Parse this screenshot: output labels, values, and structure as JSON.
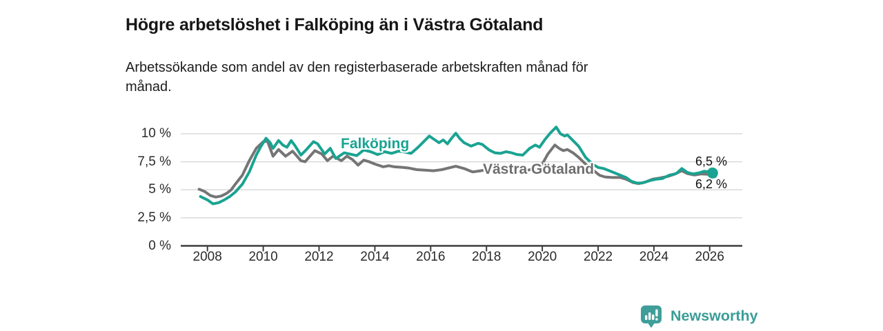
{
  "chart_data": {
    "type": "line",
    "title": "Högre arbetslöshet i Falköping än i Västra Götaland",
    "subtitle": "Arbetssökande som andel av den registerbaserade arbetskraften månad för månad.",
    "x_axis": {
      "range": [
        2007,
        2027.2
      ],
      "ticks": [
        {
          "value": 2008,
          "label": "2008"
        },
        {
          "value": 2010,
          "label": "2010"
        },
        {
          "value": 2012,
          "label": "2012"
        },
        {
          "value": 2014,
          "label": "2014"
        },
        {
          "value": 2016,
          "label": "2016"
        },
        {
          "value": 2018,
          "label": "2018"
        },
        {
          "value": 2020,
          "label": "2020"
        },
        {
          "value": 2022,
          "label": "2022"
        },
        {
          "value": 2024,
          "label": "2024"
        },
        {
          "value": 2026,
          "label": "2026"
        }
      ]
    },
    "y_axis": {
      "unit": "%",
      "range": [
        0,
        10.8
      ],
      "grid": true,
      "ticks": [
        {
          "value": 0,
          "label": "0 %"
        },
        {
          "value": 2.5,
          "label": "2,5 %"
        },
        {
          "value": 5,
          "label": "5 %"
        },
        {
          "value": 7.5,
          "label": "7,5 %"
        },
        {
          "value": 10,
          "label": "10 %"
        }
      ]
    },
    "style": {
      "grid_color": "#d9d9d9",
      "axis_color": "#3c3c3c",
      "line_width": 4
    },
    "legend_position": "inline-labels",
    "series": [
      {
        "name": "Västra Götaland",
        "label": "Västra Götaland",
        "color": "#757575",
        "end_label": "6,2 %",
        "end_value": 6.2,
        "end_marker": false,
        "points": [
          [
            2007.7,
            5.05
          ],
          [
            2007.9,
            4.85
          ],
          [
            2008.1,
            4.5
          ],
          [
            2008.3,
            4.35
          ],
          [
            2008.5,
            4.45
          ],
          [
            2008.7,
            4.7
          ],
          [
            2008.85,
            5.0
          ],
          [
            2009.0,
            5.5
          ],
          [
            2009.25,
            6.3
          ],
          [
            2009.5,
            7.6
          ],
          [
            2009.75,
            8.7
          ],
          [
            2010.0,
            9.3
          ],
          [
            2010.15,
            9.35
          ],
          [
            2010.35,
            8.0
          ],
          [
            2010.55,
            8.6
          ],
          [
            2010.8,
            8.0
          ],
          [
            2011.05,
            8.45
          ],
          [
            2011.35,
            7.6
          ],
          [
            2011.5,
            7.5
          ],
          [
            2011.85,
            8.5
          ],
          [
            2012.1,
            8.2
          ],
          [
            2012.3,
            7.6
          ],
          [
            2012.5,
            8.0
          ],
          [
            2012.8,
            7.6
          ],
          [
            2013.0,
            8.0
          ],
          [
            2013.2,
            7.7
          ],
          [
            2013.4,
            7.2
          ],
          [
            2013.6,
            7.65
          ],
          [
            2013.8,
            7.5
          ],
          [
            2014.0,
            7.3
          ],
          [
            2014.3,
            7.05
          ],
          [
            2014.5,
            7.15
          ],
          [
            2014.7,
            7.05
          ],
          [
            2015.0,
            7.0
          ],
          [
            2015.2,
            6.95
          ],
          [
            2015.5,
            6.8
          ],
          [
            2015.8,
            6.75
          ],
          [
            2016.1,
            6.7
          ],
          [
            2016.4,
            6.8
          ],
          [
            2016.9,
            7.1
          ],
          [
            2017.2,
            6.9
          ],
          [
            2017.5,
            6.6
          ],
          [
            2017.8,
            6.7
          ],
          [
            2018.1,
            6.85
          ],
          [
            2018.3,
            6.7
          ],
          [
            2018.6,
            6.6
          ],
          [
            2018.9,
            6.65
          ],
          [
            2019.2,
            6.6
          ],
          [
            2019.5,
            6.75
          ],
          [
            2019.8,
            7.0
          ],
          [
            2020.0,
            7.3
          ],
          [
            2020.2,
            8.2
          ],
          [
            2020.45,
            9.0
          ],
          [
            2020.6,
            8.7
          ],
          [
            2020.75,
            8.5
          ],
          [
            2020.9,
            8.6
          ],
          [
            2021.1,
            8.3
          ],
          [
            2021.3,
            7.9
          ],
          [
            2021.55,
            7.3
          ],
          [
            2021.8,
            6.8
          ],
          [
            2022.05,
            6.3
          ],
          [
            2022.25,
            6.15
          ],
          [
            2022.5,
            6.1
          ],
          [
            2022.8,
            6.1
          ],
          [
            2023.0,
            5.95
          ],
          [
            2023.25,
            5.65
          ],
          [
            2023.45,
            5.55
          ],
          [
            2023.7,
            5.7
          ],
          [
            2023.95,
            5.95
          ],
          [
            2024.2,
            6.05
          ],
          [
            2024.5,
            6.2
          ],
          [
            2024.75,
            6.4
          ],
          [
            2025.0,
            6.7
          ],
          [
            2025.2,
            6.45
          ],
          [
            2025.45,
            6.32
          ],
          [
            2025.7,
            6.42
          ],
          [
            2025.95,
            6.38
          ],
          [
            2026.2,
            6.2
          ]
        ]
      },
      {
        "name": "Falköping",
        "label": "Falköping",
        "color": "#1aa392",
        "end_label": "6,5 %",
        "end_value": 6.5,
        "end_marker": true,
        "points": [
          [
            2007.75,
            4.4
          ],
          [
            2008.0,
            4.1
          ],
          [
            2008.2,
            3.75
          ],
          [
            2008.4,
            3.85
          ],
          [
            2008.6,
            4.1
          ],
          [
            2008.8,
            4.4
          ],
          [
            2009.0,
            4.8
          ],
          [
            2009.25,
            5.5
          ],
          [
            2009.5,
            6.6
          ],
          [
            2009.75,
            8.1
          ],
          [
            2009.9,
            8.8
          ],
          [
            2010.1,
            9.6
          ],
          [
            2010.25,
            9.2
          ],
          [
            2010.35,
            8.7
          ],
          [
            2010.55,
            9.4
          ],
          [
            2010.7,
            9.0
          ],
          [
            2010.85,
            8.8
          ],
          [
            2011.0,
            9.4
          ],
          [
            2011.15,
            8.9
          ],
          [
            2011.35,
            8.1
          ],
          [
            2011.55,
            8.6
          ],
          [
            2011.8,
            9.3
          ],
          [
            2011.95,
            9.1
          ],
          [
            2012.2,
            8.2
          ],
          [
            2012.4,
            8.7
          ],
          [
            2012.6,
            7.8
          ],
          [
            2012.9,
            8.3
          ],
          [
            2013.1,
            8.2
          ],
          [
            2013.35,
            8.05
          ],
          [
            2013.6,
            8.55
          ],
          [
            2013.85,
            8.4
          ],
          [
            2014.1,
            8.15
          ],
          [
            2014.35,
            8.4
          ],
          [
            2014.6,
            8.25
          ],
          [
            2014.85,
            8.45
          ],
          [
            2015.1,
            8.35
          ],
          [
            2015.3,
            8.25
          ],
          [
            2015.55,
            8.8
          ],
          [
            2015.75,
            9.3
          ],
          [
            2015.95,
            9.8
          ],
          [
            2016.15,
            9.45
          ],
          [
            2016.3,
            9.2
          ],
          [
            2016.45,
            9.45
          ],
          [
            2016.6,
            9.1
          ],
          [
            2016.75,
            9.6
          ],
          [
            2016.9,
            10.05
          ],
          [
            2017.05,
            9.55
          ],
          [
            2017.2,
            9.2
          ],
          [
            2017.45,
            8.9
          ],
          [
            2017.7,
            9.15
          ],
          [
            2017.85,
            9.05
          ],
          [
            2018.1,
            8.55
          ],
          [
            2018.3,
            8.3
          ],
          [
            2018.5,
            8.25
          ],
          [
            2018.7,
            8.4
          ],
          [
            2018.9,
            8.3
          ],
          [
            2019.1,
            8.15
          ],
          [
            2019.3,
            8.1
          ],
          [
            2019.55,
            8.7
          ],
          [
            2019.75,
            9.0
          ],
          [
            2019.9,
            8.8
          ],
          [
            2020.1,
            9.5
          ],
          [
            2020.3,
            10.1
          ],
          [
            2020.5,
            10.6
          ],
          [
            2020.65,
            10.0
          ],
          [
            2020.8,
            9.8
          ],
          [
            2020.9,
            9.9
          ],
          [
            2021.1,
            9.4
          ],
          [
            2021.3,
            8.9
          ],
          [
            2021.55,
            7.9
          ],
          [
            2021.8,
            7.3
          ],
          [
            2022.0,
            7.0
          ],
          [
            2022.2,
            6.9
          ],
          [
            2022.45,
            6.65
          ],
          [
            2022.7,
            6.4
          ],
          [
            2023.0,
            6.1
          ],
          [
            2023.2,
            5.75
          ],
          [
            2023.4,
            5.6
          ],
          [
            2023.6,
            5.62
          ],
          [
            2023.9,
            5.85
          ],
          [
            2024.1,
            5.95
          ],
          [
            2024.3,
            6.0
          ],
          [
            2024.55,
            6.3
          ],
          [
            2024.8,
            6.45
          ],
          [
            2025.0,
            6.9
          ],
          [
            2025.2,
            6.55
          ],
          [
            2025.4,
            6.42
          ],
          [
            2025.6,
            6.5
          ],
          [
            2025.8,
            6.65
          ],
          [
            2026.0,
            6.6
          ],
          [
            2026.1,
            6.5
          ]
        ]
      }
    ]
  },
  "footer": {
    "brand": "Newsworthy",
    "brand_color": "#3b9d97"
  }
}
